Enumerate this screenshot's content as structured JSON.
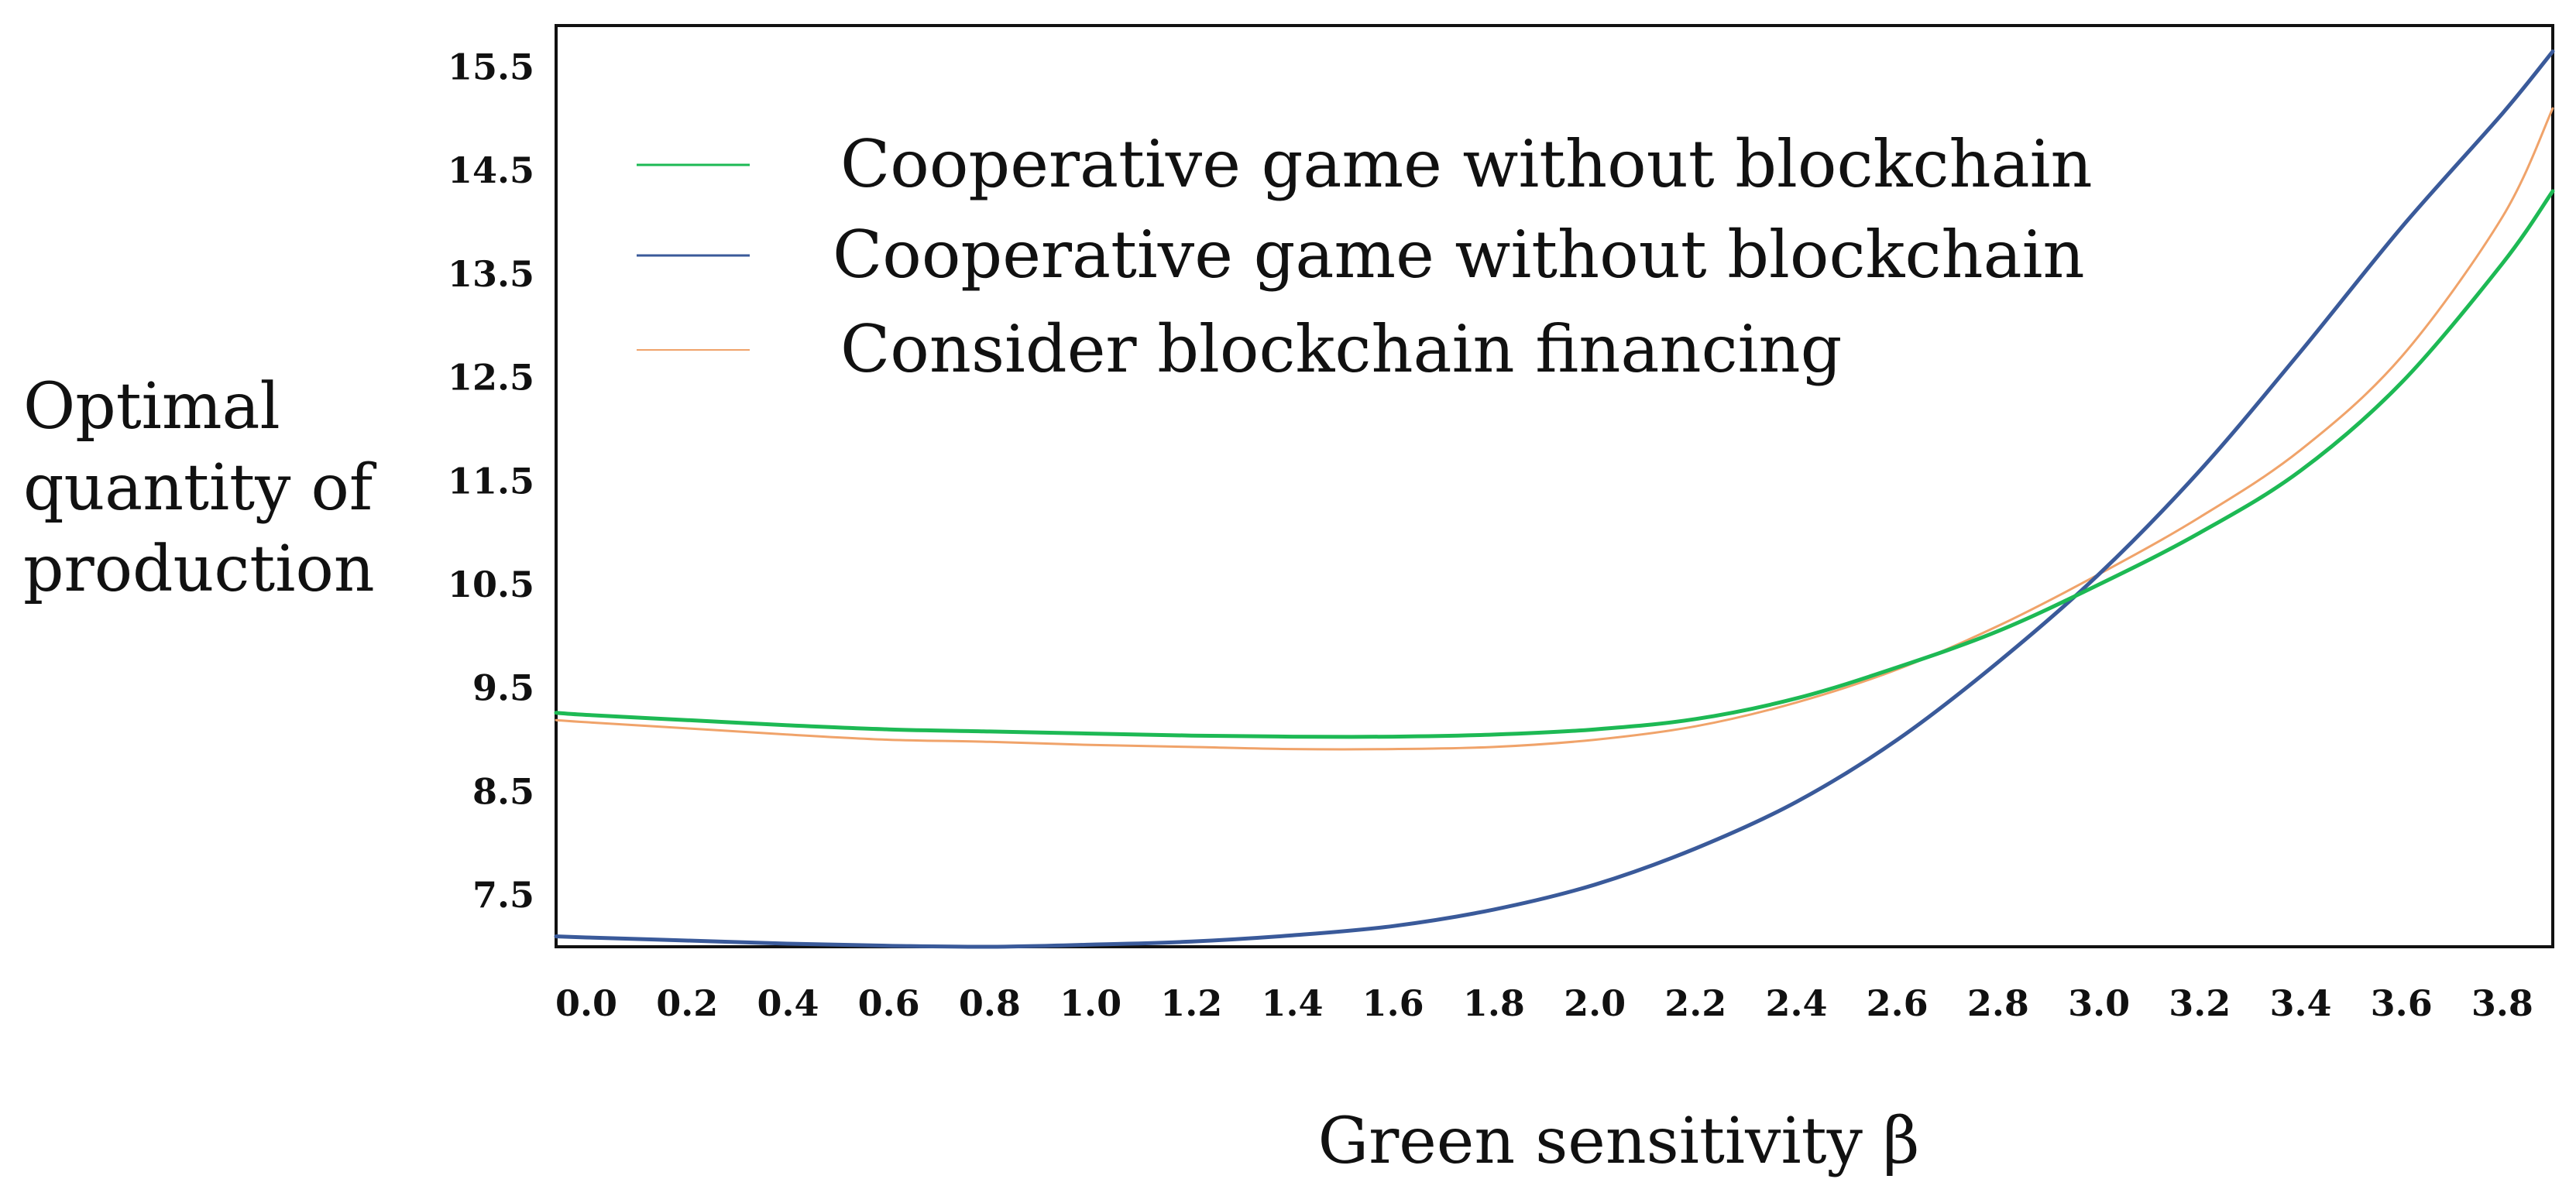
{
  "chart_data": {
    "type": "line",
    "title": "",
    "xlabel": "Green sensitivity β",
    "ylabel": "Optimal quantity of production",
    "ylabel_lines": [
      "Optimal",
      "quantity of",
      "production"
    ],
    "xlim": [
      -0.06,
      3.9
    ],
    "ylim": [
      7.0,
      15.9
    ],
    "x_ticks": [
      "0.0",
      "0.2",
      "0.4",
      "0.6",
      "0.8",
      "1.0",
      "1.2",
      "1.4",
      "1.6",
      "1.8",
      "2.0",
      "2.2",
      "2.4",
      "2.6",
      "2.8",
      "3.0",
      "3.2",
      "3.4",
      "3.6",
      "3.8"
    ],
    "y_ticks": [
      "7.5",
      "8.5",
      "9.5",
      "10.5",
      "11.5",
      "12.5",
      "13.5",
      "14.5",
      "15.5"
    ],
    "grid": false,
    "legend_position": "top-left",
    "x": [
      -0.06,
      0.0,
      0.2,
      0.4,
      0.6,
      0.8,
      1.0,
      1.2,
      1.4,
      1.6,
      1.8,
      2.0,
      2.2,
      2.4,
      2.6,
      2.8,
      3.0,
      3.2,
      3.4,
      3.6,
      3.8,
      3.9
    ],
    "series": [
      {
        "name": "Cooperative game without blockchain",
        "color": "#1db954",
        "values": [
          9.26,
          9.24,
          9.19,
          9.14,
          9.1,
          9.08,
          9.06,
          9.04,
          9.03,
          9.03,
          9.05,
          9.1,
          9.2,
          9.4,
          9.7,
          10.05,
          10.5,
          11.0,
          11.6,
          12.45,
          13.6,
          14.3
        ]
      },
      {
        "name": "Cooperative game without blockchain",
        "color": "#3a5a9a",
        "values": [
          7.1,
          7.09,
          7.06,
          7.03,
          7.01,
          7.0,
          7.02,
          7.05,
          7.11,
          7.2,
          7.36,
          7.6,
          7.95,
          8.4,
          9.0,
          9.75,
          10.6,
          11.6,
          12.75,
          13.95,
          15.05,
          15.65
        ]
      },
      {
        "name": "Consider blockchain financing",
        "color": "#f0a36a",
        "values": [
          9.19,
          9.17,
          9.11,
          9.05,
          9.0,
          8.98,
          8.95,
          8.93,
          8.91,
          8.91,
          8.93,
          9.0,
          9.13,
          9.36,
          9.68,
          10.1,
          10.6,
          11.15,
          11.8,
          12.7,
          14.05,
          15.1
        ]
      }
    ]
  }
}
